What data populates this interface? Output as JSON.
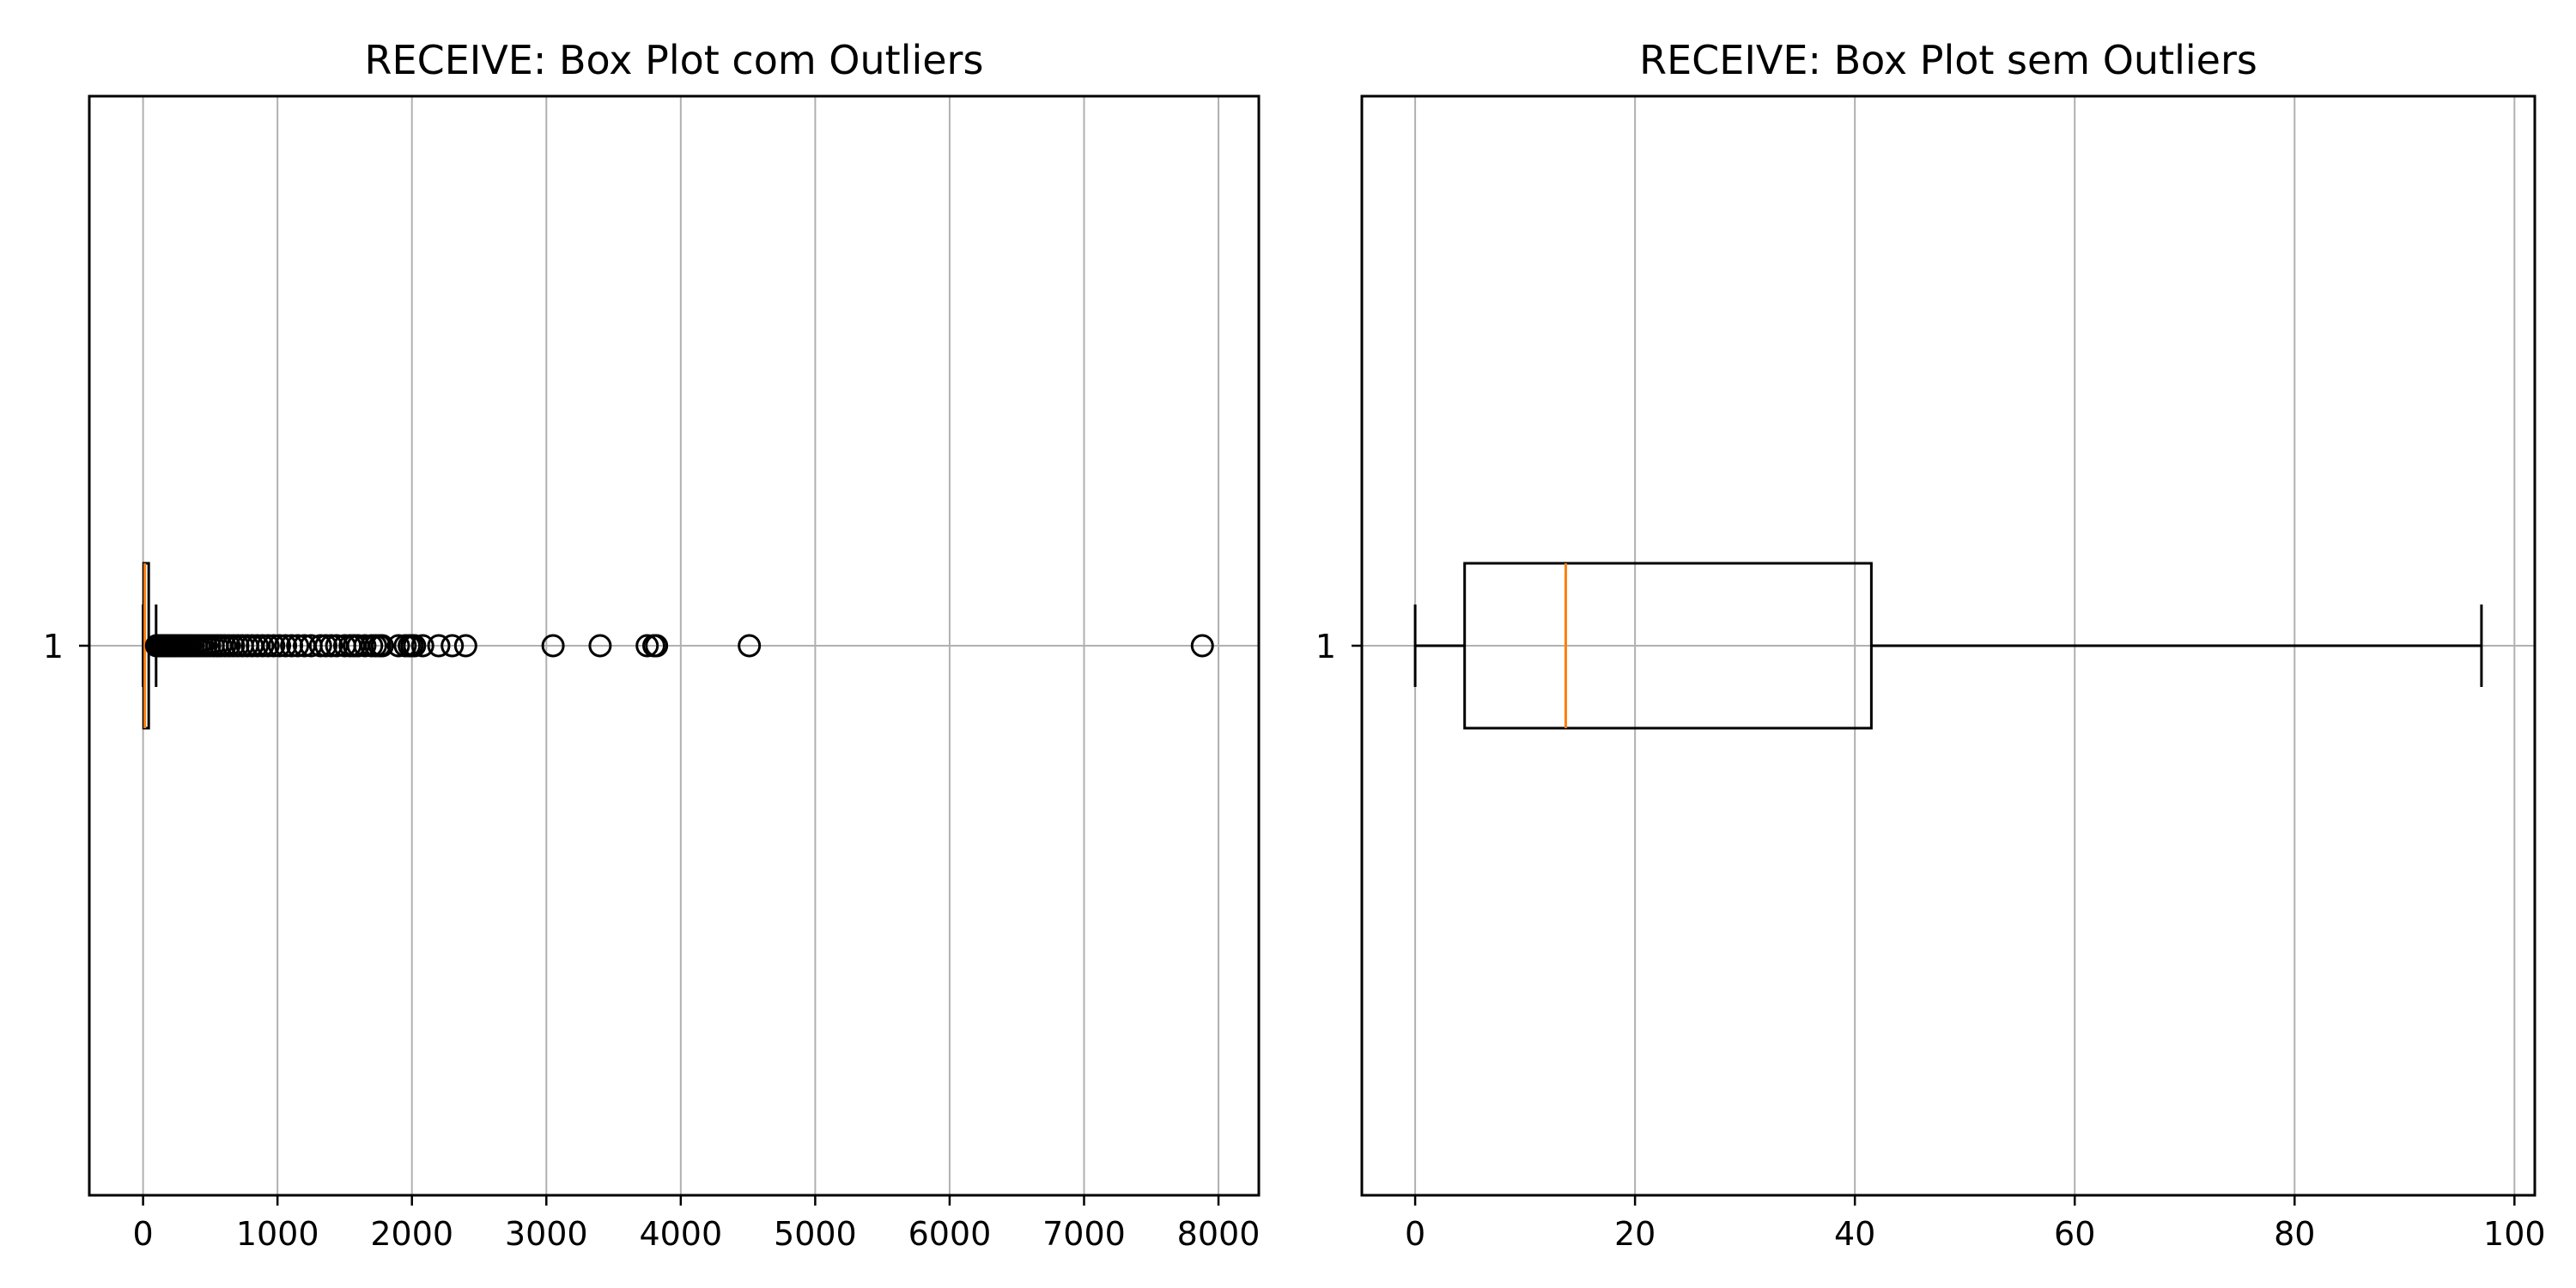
{
  "chart_data": [
    {
      "type": "boxplot",
      "orientation": "horizontal",
      "title": "RECEIVE: Box Plot com Outliers",
      "xlabel": "",
      "ylabel": "",
      "xlim": [
        -400,
        8300
      ],
      "xticks": [
        0,
        1000,
        2000,
        3000,
        4000,
        5000,
        6000,
        7000,
        8000
      ],
      "categories": [
        "1"
      ],
      "grid": true,
      "box": {
        "whisker_low": 0,
        "q1": 4,
        "median": 13,
        "q3": 42,
        "whisker_high": 97
      },
      "outliers": [
        100,
        108,
        116,
        125,
        135,
        145,
        155,
        166,
        178,
        190,
        203,
        217,
        231,
        246,
        262,
        279,
        297,
        315,
        334,
        354,
        375,
        397,
        420,
        444,
        469,
        495,
        522,
        550,
        579,
        609,
        640,
        672,
        705,
        739,
        775,
        812,
        850,
        890,
        930,
        972,
        1015,
        1060,
        1105,
        1150,
        1200,
        1250,
        1320,
        1360,
        1400,
        1440,
        1500,
        1540,
        1570,
        1600,
        1650,
        1700,
        1730,
        1760,
        1780,
        1900,
        1950,
        1980,
        2000,
        2020,
        2080,
        2200,
        2300,
        2400,
        3050,
        3400,
        3750,
        3800,
        3820,
        4510,
        7880
      ],
      "colors": {
        "box": "#000000",
        "median": "#ff7f0e",
        "grid": "#b0b0b0"
      }
    },
    {
      "type": "boxplot",
      "orientation": "horizontal",
      "title": "RECEIVE: Box Plot sem Outliers",
      "xlabel": "",
      "ylabel": "",
      "xlim": [
        -4.85,
        101.85
      ],
      "xticks": [
        0,
        20,
        40,
        60,
        80,
        100
      ],
      "categories": [
        "1"
      ],
      "grid": true,
      "box": {
        "whisker_low": 0,
        "q1": 4.5,
        "median": 13.7,
        "q3": 41.5,
        "whisker_high": 97
      },
      "outliers": [],
      "colors": {
        "box": "#000000",
        "median": "#ff7f0e",
        "grid": "#b0b0b0"
      }
    }
  ]
}
